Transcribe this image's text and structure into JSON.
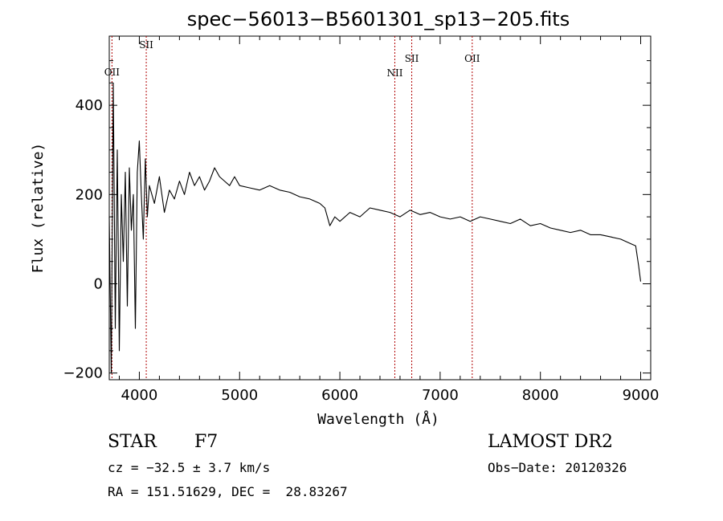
{
  "chart_data": {
    "type": "line",
    "title": "spec−56013−B5601301_sp13−205.fits",
    "xlabel": "Wavelength (Å)",
    "ylabel": "Flux (relative)",
    "xlim": [
      3700,
      9100
    ],
    "ylim": [
      -215,
      555
    ],
    "xticks": [
      4000,
      5000,
      6000,
      7000,
      8000,
      9000
    ],
    "yticks": [
      -200,
      0,
      200,
      400
    ],
    "grid": false,
    "series": [
      {
        "name": "",
        "x": [
          3700,
          3720,
          3740,
          3760,
          3780,
          3800,
          3820,
          3840,
          3860,
          3880,
          3900,
          3920,
          3940,
          3960,
          3980,
          4000,
          4020,
          4040,
          4060,
          4080,
          4100,
          4150,
          4200,
          4250,
          4300,
          4350,
          4400,
          4450,
          4500,
          4550,
          4600,
          4650,
          4700,
          4750,
          4800,
          4850,
          4900,
          4950,
          5000,
          5100,
          5200,
          5300,
          5400,
          5500,
          5600,
          5700,
          5800,
          5850,
          5900,
          5950,
          6000,
          6100,
          6200,
          6300,
          6400,
          6500,
          6600,
          6700,
          6800,
          6900,
          7000,
          7100,
          7200,
          7300,
          7400,
          7500,
          7600,
          7700,
          7800,
          7900,
          8000,
          8100,
          8200,
          8300,
          8400,
          8500,
          8600,
          8700,
          8800,
          8900,
          8950,
          8980,
          9000
        ],
        "values": [
          150,
          -200,
          450,
          -100,
          300,
          -150,
          200,
          50,
          250,
          -50,
          260,
          120,
          200,
          -100,
          250,
          320,
          200,
          100,
          280,
          150,
          220,
          180,
          240,
          160,
          210,
          190,
          230,
          200,
          250,
          220,
          240,
          210,
          230,
          260,
          240,
          230,
          220,
          240,
          220,
          215,
          210,
          220,
          210,
          205,
          195,
          190,
          180,
          170,
          130,
          150,
          140,
          160,
          150,
          170,
          165,
          160,
          150,
          165,
          155,
          160,
          150,
          145,
          150,
          140,
          150,
          145,
          140,
          135,
          145,
          130,
          135,
          125,
          120,
          115,
          120,
          110,
          110,
          105,
          100,
          90,
          85,
          40,
          5
        ]
      }
    ],
    "lines": [
      {
        "label": "OII",
        "x": 3727
      },
      {
        "label": "SII",
        "x": 4069
      },
      {
        "label": "NII",
        "x": 6548
      },
      {
        "label": "SII",
        "x": 6717
      },
      {
        "label": "OII",
        "x": 7320
      }
    ]
  },
  "info": {
    "object_class": "STAR",
    "subclass": "F7",
    "survey": "LAMOST DR2",
    "cz": "cz = −32.5 ± 3.7 km/s",
    "obs_date": "Obs−Date: 20120326",
    "coords": "RA = 151.51629, DEC =  28.83267"
  }
}
